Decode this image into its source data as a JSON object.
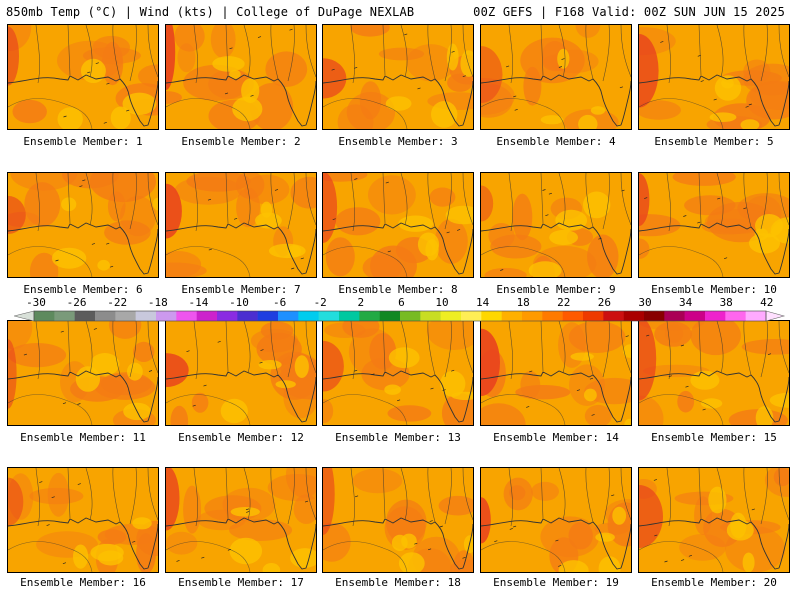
{
  "header": {
    "left": "850mb Temp (°C) | Wind (kts) | College of DuPage NEXLAB",
    "right": "00Z GEFS | F168 Valid: 00Z SUN JUN 15 2025"
  },
  "members": [
    {
      "label": "Ensemble Member: 1",
      "variant": 1
    },
    {
      "label": "Ensemble Member: 2",
      "variant": 2
    },
    {
      "label": "Ensemble Member: 3",
      "variant": 3
    },
    {
      "label": "Ensemble Member: 4",
      "variant": 4
    },
    {
      "label": "Ensemble Member: 5",
      "variant": 5
    },
    {
      "label": "Ensemble Member: 6",
      "variant": 6
    },
    {
      "label": "Ensemble Member: 7",
      "variant": 7
    },
    {
      "label": "Ensemble Member: 8",
      "variant": 8
    },
    {
      "label": "Ensemble Member: 9",
      "variant": 9
    },
    {
      "label": "Ensemble Member: 10",
      "variant": 10
    },
    {
      "label": "Ensemble Member: 11",
      "variant": 11
    },
    {
      "label": "Ensemble Member: 12",
      "variant": 12
    },
    {
      "label": "Ensemble Member: 13",
      "variant": 13
    },
    {
      "label": "Ensemble Member: 14",
      "variant": 14
    },
    {
      "label": "Ensemble Member: 15",
      "variant": 15
    },
    {
      "label": "Ensemble Member: 16",
      "variant": 16
    },
    {
      "label": "Ensemble Member: 17",
      "variant": 17
    },
    {
      "label": "Ensemble Member: 18",
      "variant": 18
    },
    {
      "label": "Ensemble Member: 19",
      "variant": 19
    },
    {
      "label": "Ensemble Member: 20",
      "variant": 20
    }
  ],
  "colorbar": {
    "labels": [
      "-30",
      "-26",
      "-22",
      "-18",
      "-14",
      "-10",
      "-6",
      "-2",
      "2",
      "6",
      "10",
      "14",
      "18",
      "22",
      "26",
      "30",
      "34",
      "38",
      "42"
    ],
    "colors": [
      "#5e8a5e",
      "#7a9a7a",
      "#5c5c5c",
      "#8c8c8c",
      "#a8a8a8",
      "#c8c8dc",
      "#cc99ee",
      "#ee55ee",
      "#cc22cc",
      "#8a2be2",
      "#4b2fd0",
      "#1e3ee0",
      "#1e90ff",
      "#00ccee",
      "#22dddd",
      "#00c8a0",
      "#22aa44",
      "#118822",
      "#77bb22",
      "#c8dd22",
      "#eeee22",
      "#ffee55",
      "#ffd700",
      "#ffb000",
      "#ff9a00",
      "#ff7a00",
      "#ff5a00",
      "#ee3a00",
      "#cc1010",
      "#aa0000",
      "#880000",
      "#aa0055",
      "#cc0088",
      "#ee22cc",
      "#ff66ee",
      "#ffaaff"
    ]
  },
  "map_colors": {
    "base": "#f8a400",
    "warm": "#f47b14",
    "hot": "#e8401e",
    "cool": "#fcc200",
    "coastline": "#333333"
  }
}
